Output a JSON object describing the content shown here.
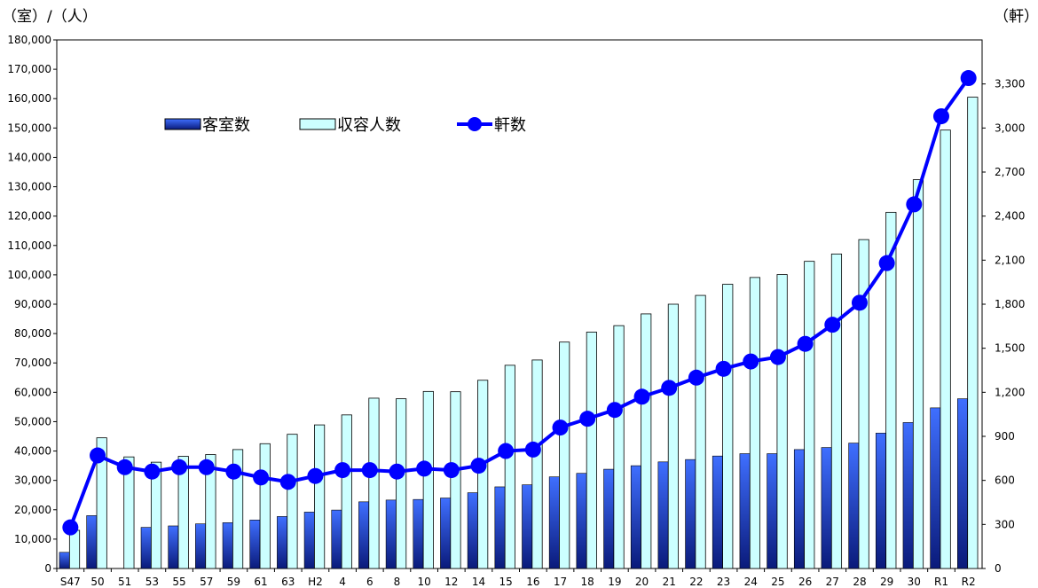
{
  "chart_data": {
    "type": "bar",
    "left_unit_label": "（室）/（人）",
    "right_unit_label": "（軒）",
    "categories": [
      "S47",
      "50",
      "51",
      "53",
      "55",
      "57",
      "59",
      "61",
      "63",
      "H2",
      "4",
      "6",
      "8",
      "10",
      "12",
      "14",
      "15",
      "16",
      "17",
      "18",
      "19",
      "20",
      "21",
      "22",
      "23",
      "24",
      "25",
      "26",
      "27",
      "28",
      "29",
      "30",
      "R1",
      "R2"
    ],
    "left_axis": {
      "min": 0,
      "max": 180000,
      "step": 10000,
      "tick_labels": [
        "0",
        "10,000",
        "20,000",
        "30,000",
        "40,000",
        "50,000",
        "60,000",
        "70,000",
        "80,000",
        "90,000",
        "100,000",
        "110,000",
        "120,000",
        "130,000",
        "140,000",
        "150,000",
        "160,000",
        "170,000",
        "180,000"
      ]
    },
    "right_axis": {
      "min": 0,
      "max": 3600,
      "step": 300,
      "tick_labels": [
        "0",
        "300",
        "600",
        "900",
        "1,200",
        "1,500",
        "1,800",
        "2,100",
        "2,400",
        "2,700",
        "3,000",
        "3,300"
      ]
    },
    "series": [
      {
        "name": "客室数",
        "kind": "bar",
        "axis": "left",
        "color": "#1f3fbf",
        "values": [
          5500,
          18000,
          null,
          14000,
          14500,
          15200,
          15600,
          16500,
          17700,
          19200,
          19900,
          22700,
          23300,
          23500,
          24000,
          25800,
          27800,
          28500,
          31200,
          32400,
          33800,
          35000,
          36300,
          37100,
          38300,
          39100,
          39100,
          40500,
          41200,
          42700,
          46100,
          49700,
          54700,
          57800
        ]
      },
      {
        "name": "収容人数",
        "kind": "bar",
        "axis": "left",
        "color": "#ccffff",
        "values": [
          13000,
          44500,
          38000,
          36200,
          38200,
          38800,
          40500,
          42500,
          45700,
          48900,
          52300,
          58000,
          57800,
          60300,
          60200,
          64100,
          69200,
          71000,
          77100,
          80500,
          82700,
          86700,
          90000,
          93000,
          96800,
          99100,
          100100,
          104600,
          107100,
          112000,
          121300,
          132400,
          149300,
          160500
        ]
      },
      {
        "name": "軒数",
        "kind": "line",
        "axis": "right",
        "color": "#0000ff",
        "values": [
          280,
          770,
          690,
          660,
          690,
          690,
          660,
          620,
          590,
          630,
          670,
          670,
          660,
          680,
          670,
          700,
          800,
          810,
          960,
          1020,
          1080,
          1170,
          1230,
          1300,
          1360,
          1410,
          1440,
          1530,
          1660,
          1810,
          2080,
          2480,
          3080,
          3340
        ]
      }
    ],
    "legend": {
      "position": "top-left"
    },
    "grid": false
  }
}
